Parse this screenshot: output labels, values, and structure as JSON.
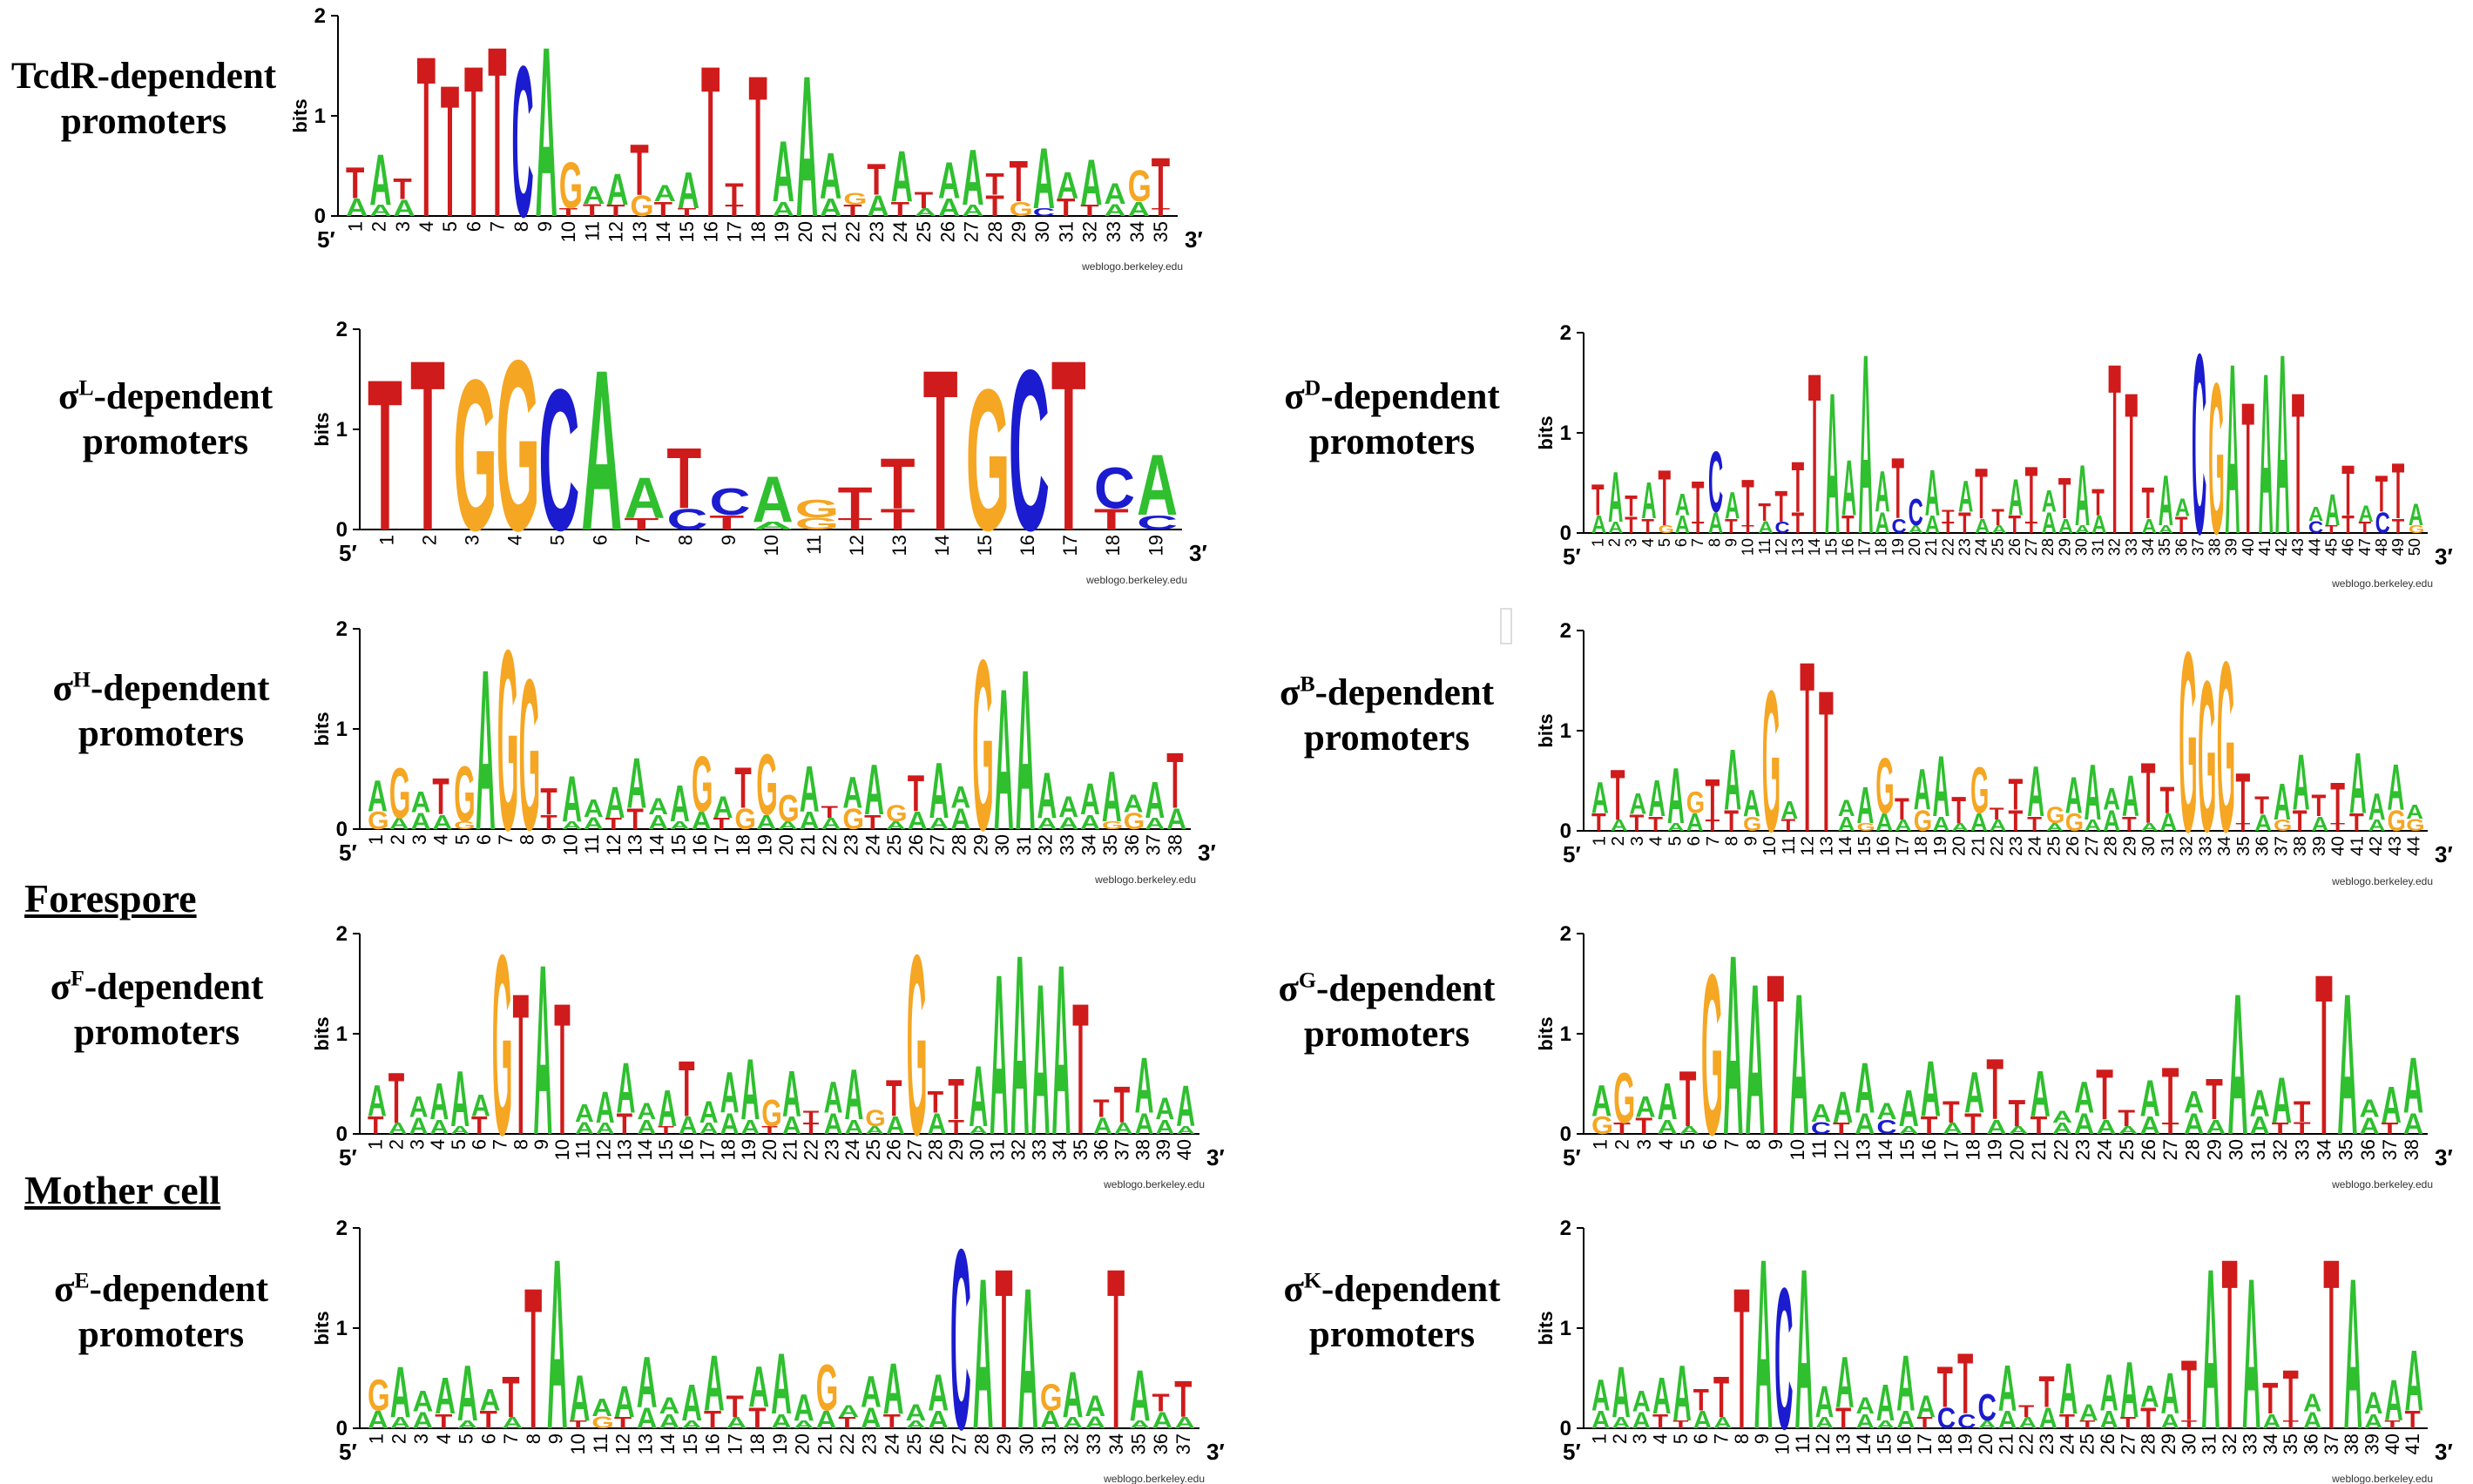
{
  "colors": {
    "A": "#2fbf2f",
    "C": "#1b1bcf",
    "G": "#f5a623",
    "T": "#cf1b1b"
  },
  "sections": {
    "forespore": "Forespore",
    "mother_cell": "Mother cell"
  },
  "common": {
    "y_axis_label": "bits",
    "y_ticks": [
      "0",
      "1",
      "2"
    ],
    "end5": "5′",
    "end3": "3′",
    "credit": "weblogo.berkeley.edu"
  },
  "panels": [
    {
      "id": "tcdr",
      "line1": "TcdR-dependent",
      "line2": "promoters",
      "sigma": "",
      "sup": "",
      "n": 35,
      "seq": "AAGTTTACAAAATTTTTTATAAAAATAAAAGCTTAT",
      "strong": {
        "4": "T",
        "5": "T",
        "6": "T",
        "7": "T",
        "8": "C",
        "9": "A",
        "16": "T",
        "18": "T",
        "20": "A"
      }
    },
    {
      "id": "sigL",
      "line1": "-dependent",
      "line2": "promoters",
      "sigma": "σ",
      "sup": "L",
      "n": 19,
      "seq": "TTGGCATACGGAATATTGCTTAT",
      "strong": {
        "1": "T",
        "2": "T",
        "3": "G",
        "4": "G",
        "5": "C",
        "6": "A",
        "14": "T",
        "15": "G",
        "16": "C",
        "17": "T"
      }
    },
    {
      "id": "sigD",
      "line1": "-dependent",
      "line2": "promoters",
      "sigma": "σ",
      "sup": "D",
      "n": 50,
      "seq": "TAATTAAATTTAAAATTTAATTTTCCGATATAAAAG",
      "strong": {
        "14": "T",
        "15": "A",
        "17": "A",
        "32": "T",
        "33": "T",
        "37": "C",
        "38": "G",
        "39": "A",
        "40": "T",
        "41": "A",
        "42": "A",
        "43": "T"
      }
    },
    {
      "id": "sigH",
      "line1": "-dependent",
      "line2": "promoters",
      "sigma": "σ",
      "sup": "H",
      "n": 38,
      "seq": "AAAAAAGGAATATAGGAATTTAAGAAGTAAAATA",
      "strong": {
        "6": "A",
        "7": "G",
        "8": "G",
        "29": "G",
        "30": "A",
        "31": "A"
      }
    },
    {
      "id": "sigB",
      "line1": "-dependent",
      "line2": "promoters",
      "sigma": "σ",
      "sup": "B",
      "n": 44,
      "seq": "AAAATTTGTTTAATAAAAGGGTATAAAA",
      "strong": {
        "10": "G",
        "12": "T",
        "13": "T",
        "32": "G",
        "33": "G",
        "34": "G"
      }
    },
    {
      "id": "sigF",
      "line1": "-dependent",
      "line2": "promoters",
      "sigma": "σ",
      "sup": "F",
      "n": 40,
      "seq": "AAAAAGTATAAAATTAATAAAAATTGAAAAATAAA",
      "strong": {
        "7": "G",
        "8": "T",
        "9": "A",
        "10": "T",
        "27": "G",
        "31": "A",
        "32": "A",
        "33": "A",
        "34": "A",
        "35": "T"
      }
    },
    {
      "id": "sigG",
      "line1": "-dependent",
      "line2": "promoters",
      "sigma": "σ",
      "sup": "G",
      "n": 38,
      "seq": "AAAAATGAATATATTTAAATAATTTAAAAATAACTAAT",
      "strong": {
        "6": "G",
        "7": "A",
        "8": "A",
        "9": "T",
        "10": "A",
        "30": "A",
        "34": "T",
        "35": "A"
      }
    },
    {
      "id": "sigE",
      "line1": "-dependent",
      "line2": "promoters",
      "sigma": "σ",
      "sup": "E",
      "n": 37,
      "seq": "ATAGAAAATAAAAATAAAACATAAATAAAA",
      "strong": {
        "8": "T",
        "9": "A",
        "27": "C",
        "28": "A",
        "29": "T",
        "30": "A",
        "34": "T"
      }
    },
    {
      "id": "sigK",
      "line1": "-dependent",
      "line2": "promoters",
      "sigma": "σ",
      "sup": "K",
      "n": 41,
      "seq": "AAAAAAATAACAATTAATTCTTTACATATATATTAA",
      "strong": {
        "8": "T",
        "9": "A",
        "10": "C",
        "11": "A",
        "31": "A",
        "32": "T",
        "33": "A",
        "37": "T",
        "38": "A"
      }
    }
  ]
}
